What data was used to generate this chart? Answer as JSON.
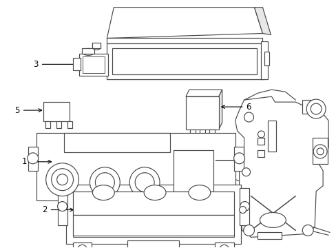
{
  "background_color": "#ffffff",
  "line_color": "#4a4a4a",
  "label_color": "#000000",
  "lw": 0.85,
  "font_size": 8.5,
  "fig_w": 4.89,
  "fig_h": 3.6,
  "dpi": 100
}
